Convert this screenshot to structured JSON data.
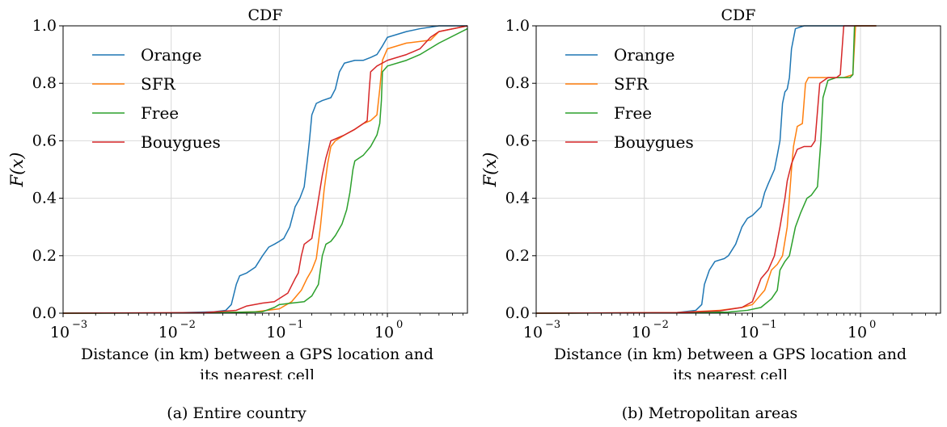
{
  "chart_data": [
    {
      "type": "line",
      "panel": "a",
      "title": "CDF",
      "caption": "(a) Entire country",
      "ylabel": "F(x)",
      "xlabel_lines": [
        "Distance (in km) between a GPS location and",
        "its nearest cell"
      ],
      "xscale": "log",
      "xlim": [
        0.001,
        5.5
      ],
      "ylim": [
        0,
        1
      ],
      "grid": true,
      "legend_position": "upper-left",
      "x_ticks": [
        {
          "value": 0.001,
          "label": "10"
        },
        {
          "value": 0.01,
          "label": "10"
        },
        {
          "value": 0.1,
          "label": "10"
        },
        {
          "value": 1,
          "label": "10"
        }
      ],
      "x_tick_exponents": [
        "−3",
        "−2",
        "−1",
        "0"
      ],
      "y_ticks": [
        {
          "value": 0,
          "label": "0.0"
        },
        {
          "value": 0.2,
          "label": "0.2"
        },
        {
          "value": 0.4,
          "label": "0.4"
        },
        {
          "value": 0.6,
          "label": "0.6"
        },
        {
          "value": 0.8,
          "label": "0.8"
        },
        {
          "value": 1,
          "label": "1.0"
        }
      ],
      "series": [
        {
          "name": "Orange",
          "color": "#1f77b4",
          "points": [
            [
              0.001,
              0
            ],
            [
              0.01,
              0.001
            ],
            [
              0.025,
              0.005
            ],
            [
              0.032,
              0.01
            ],
            [
              0.036,
              0.03
            ],
            [
              0.04,
              0.1
            ],
            [
              0.043,
              0.13
            ],
            [
              0.05,
              0.14
            ],
            [
              0.06,
              0.16
            ],
            [
              0.07,
              0.2
            ],
            [
              0.08,
              0.23
            ],
            [
              0.09,
              0.24
            ],
            [
              0.1,
              0.25
            ],
            [
              0.11,
              0.26
            ],
            [
              0.125,
              0.3
            ],
            [
              0.14,
              0.37
            ],
            [
              0.155,
              0.4
            ],
            [
              0.17,
              0.44
            ],
            [
              0.18,
              0.52
            ],
            [
              0.19,
              0.6
            ],
            [
              0.2,
              0.69
            ],
            [
              0.22,
              0.73
            ],
            [
              0.25,
              0.74
            ],
            [
              0.3,
              0.75
            ],
            [
              0.33,
              0.78
            ],
            [
              0.36,
              0.84
            ],
            [
              0.4,
              0.87
            ],
            [
              0.5,
              0.88
            ],
            [
              0.6,
              0.88
            ],
            [
              0.7,
              0.89
            ],
            [
              0.8,
              0.9
            ],
            [
              0.9,
              0.93
            ],
            [
              1.0,
              0.96
            ],
            [
              1.5,
              0.98
            ],
            [
              2.0,
              0.99
            ],
            [
              3,
              1.0
            ],
            [
              5.5,
              1.0
            ]
          ]
        },
        {
          "name": "SFR",
          "color": "#ff7f0e",
          "points": [
            [
              0.001,
              0
            ],
            [
              0.02,
              0.001
            ],
            [
              0.06,
              0.005
            ],
            [
              0.1,
              0.015
            ],
            [
              0.13,
              0.04
            ],
            [
              0.16,
              0.08
            ],
            [
              0.18,
              0.12
            ],
            [
              0.2,
              0.15
            ],
            [
              0.22,
              0.19
            ],
            [
              0.24,
              0.3
            ],
            [
              0.26,
              0.43
            ],
            [
              0.28,
              0.52
            ],
            [
              0.3,
              0.58
            ],
            [
              0.33,
              0.6
            ],
            [
              0.4,
              0.62
            ],
            [
              0.5,
              0.64
            ],
            [
              0.6,
              0.66
            ],
            [
              0.7,
              0.67
            ],
            [
              0.8,
              0.69
            ],
            [
              0.85,
              0.78
            ],
            [
              0.9,
              0.88
            ],
            [
              1.0,
              0.92
            ],
            [
              1.5,
              0.94
            ],
            [
              2.5,
              0.95
            ],
            [
              3,
              0.98
            ],
            [
              5.5,
              1.0
            ]
          ]
        },
        {
          "name": "Free",
          "color": "#2ca02c",
          "points": [
            [
              0.001,
              0
            ],
            [
              0.02,
              0.001
            ],
            [
              0.07,
              0.005
            ],
            [
              0.09,
              0.02
            ],
            [
              0.1,
              0.03
            ],
            [
              0.13,
              0.035
            ],
            [
              0.17,
              0.04
            ],
            [
              0.2,
              0.06
            ],
            [
              0.23,
              0.1
            ],
            [
              0.25,
              0.2
            ],
            [
              0.27,
              0.24
            ],
            [
              0.3,
              0.25
            ],
            [
              0.33,
              0.27
            ],
            [
              0.38,
              0.31
            ],
            [
              0.42,
              0.36
            ],
            [
              0.45,
              0.42
            ],
            [
              0.48,
              0.5
            ],
            [
              0.5,
              0.53
            ],
            [
              0.6,
              0.55
            ],
            [
              0.7,
              0.58
            ],
            [
              0.8,
              0.62
            ],
            [
              0.85,
              0.66
            ],
            [
              0.88,
              0.74
            ],
            [
              0.9,
              0.84
            ],
            [
              1.0,
              0.86
            ],
            [
              1.5,
              0.88
            ],
            [
              2.0,
              0.9
            ],
            [
              3,
              0.94
            ],
            [
              5.5,
              0.99
            ]
          ]
        },
        {
          "name": "Bouygues",
          "color": "#d62728",
          "points": [
            [
              0.001,
              0
            ],
            [
              0.02,
              0.002
            ],
            [
              0.04,
              0.01
            ],
            [
              0.05,
              0.025
            ],
            [
              0.07,
              0.035
            ],
            [
              0.09,
              0.04
            ],
            [
              0.12,
              0.07
            ],
            [
              0.14,
              0.12
            ],
            [
              0.15,
              0.14
            ],
            [
              0.16,
              0.2
            ],
            [
              0.17,
              0.24
            ],
            [
              0.2,
              0.26
            ],
            [
              0.22,
              0.35
            ],
            [
              0.25,
              0.48
            ],
            [
              0.27,
              0.54
            ],
            [
              0.3,
              0.6
            ],
            [
              0.4,
              0.62
            ],
            [
              0.5,
              0.64
            ],
            [
              0.6,
              0.66
            ],
            [
              0.65,
              0.67
            ],
            [
              0.68,
              0.78
            ],
            [
              0.7,
              0.84
            ],
            [
              0.8,
              0.86
            ],
            [
              1.0,
              0.88
            ],
            [
              1.5,
              0.9
            ],
            [
              2.0,
              0.92
            ],
            [
              2.5,
              0.96
            ],
            [
              3,
              0.98
            ],
            [
              5.5,
              1.0
            ]
          ]
        }
      ]
    },
    {
      "type": "line",
      "panel": "b",
      "title": "CDF",
      "caption": "(b) Metropolitan areas",
      "ylabel": "F(x)",
      "xlabel_lines": [
        "Distance (in km) between a GPS location and",
        "its nearest cell"
      ],
      "xscale": "log",
      "xlim": [
        0.001,
        5.5
      ],
      "ylim": [
        0,
        1
      ],
      "grid": true,
      "legend_position": "upper-left",
      "x_ticks": [
        {
          "value": 0.001,
          "label": "10"
        },
        {
          "value": 0.01,
          "label": "10"
        },
        {
          "value": 0.1,
          "label": "10"
        },
        {
          "value": 1,
          "label": "10"
        }
      ],
      "x_tick_exponents": [
        "−3",
        "−2",
        "−1",
        "0"
      ],
      "y_ticks": [
        {
          "value": 0,
          "label": "0.0"
        },
        {
          "value": 0.2,
          "label": "0.2"
        },
        {
          "value": 0.4,
          "label": "0.4"
        },
        {
          "value": 0.6,
          "label": "0.6"
        },
        {
          "value": 0.8,
          "label": "0.8"
        },
        {
          "value": 1,
          "label": "1.0"
        }
      ],
      "series": [
        {
          "name": "Orange",
          "color": "#1f77b4",
          "points": [
            [
              0.001,
              0
            ],
            [
              0.02,
              0.002
            ],
            [
              0.03,
              0.01
            ],
            [
              0.034,
              0.03
            ],
            [
              0.036,
              0.1
            ],
            [
              0.04,
              0.15
            ],
            [
              0.045,
              0.18
            ],
            [
              0.055,
              0.19
            ],
            [
              0.06,
              0.2
            ],
            [
              0.07,
              0.24
            ],
            [
              0.08,
              0.3
            ],
            [
              0.09,
              0.33
            ],
            [
              0.1,
              0.34
            ],
            [
              0.12,
              0.37
            ],
            [
              0.13,
              0.42
            ],
            [
              0.14,
              0.45
            ],
            [
              0.16,
              0.5
            ],
            [
              0.17,
              0.55
            ],
            [
              0.18,
              0.6
            ],
            [
              0.19,
              0.73
            ],
            [
              0.2,
              0.77
            ],
            [
              0.21,
              0.78
            ],
            [
              0.22,
              0.82
            ],
            [
              0.23,
              0.92
            ],
            [
              0.25,
              0.99
            ],
            [
              0.3,
              1.0
            ],
            [
              0.5,
              1.0
            ],
            [
              1.4,
              1.0
            ]
          ]
        },
        {
          "name": "SFR",
          "color": "#ff7f0e",
          "points": [
            [
              0.001,
              0
            ],
            [
              0.02,
              0.002
            ],
            [
              0.05,
              0.01
            ],
            [
              0.08,
              0.02
            ],
            [
              0.1,
              0.03
            ],
            [
              0.13,
              0.08
            ],
            [
              0.15,
              0.15
            ],
            [
              0.17,
              0.17
            ],
            [
              0.19,
              0.2
            ],
            [
              0.21,
              0.3
            ],
            [
              0.23,
              0.5
            ],
            [
              0.24,
              0.58
            ],
            [
              0.26,
              0.65
            ],
            [
              0.29,
              0.66
            ],
            [
              0.31,
              0.8
            ],
            [
              0.33,
              0.82
            ],
            [
              0.5,
              0.82
            ],
            [
              0.7,
              0.82
            ],
            [
              0.85,
              0.83
            ],
            [
              0.9,
              1.0
            ],
            [
              1.0,
              1.0
            ],
            [
              1.4,
              1.0
            ]
          ]
        },
        {
          "name": "Free",
          "color": "#2ca02c",
          "points": [
            [
              0.001,
              0
            ],
            [
              0.02,
              0.001
            ],
            [
              0.06,
              0.004
            ],
            [
              0.09,
              0.01
            ],
            [
              0.12,
              0.02
            ],
            [
              0.15,
              0.05
            ],
            [
              0.17,
              0.08
            ],
            [
              0.18,
              0.15
            ],
            [
              0.2,
              0.18
            ],
            [
              0.22,
              0.2
            ],
            [
              0.25,
              0.3
            ],
            [
              0.28,
              0.35
            ],
            [
              0.32,
              0.4
            ],
            [
              0.35,
              0.41
            ],
            [
              0.4,
              0.44
            ],
            [
              0.43,
              0.6
            ],
            [
              0.45,
              0.75
            ],
            [
              0.5,
              0.81
            ],
            [
              0.6,
              0.82
            ],
            [
              0.8,
              0.82
            ],
            [
              0.85,
              0.83
            ],
            [
              0.88,
              1.0
            ],
            [
              1.4,
              1.0
            ]
          ]
        },
        {
          "name": "Bouygues",
          "color": "#d62728",
          "points": [
            [
              0.001,
              0
            ],
            [
              0.02,
              0.002
            ],
            [
              0.05,
              0.008
            ],
            [
              0.08,
              0.02
            ],
            [
              0.1,
              0.04
            ],
            [
              0.12,
              0.12
            ],
            [
              0.14,
              0.15
            ],
            [
              0.16,
              0.2
            ],
            [
              0.18,
              0.3
            ],
            [
              0.2,
              0.4
            ],
            [
              0.21,
              0.46
            ],
            [
              0.23,
              0.52
            ],
            [
              0.26,
              0.57
            ],
            [
              0.3,
              0.58
            ],
            [
              0.35,
              0.58
            ],
            [
              0.38,
              0.6
            ],
            [
              0.42,
              0.8
            ],
            [
              0.5,
              0.82
            ],
            [
              0.6,
              0.82
            ],
            [
              0.65,
              0.83
            ],
            [
              0.7,
              1.0
            ],
            [
              1.0,
              1.0
            ],
            [
              1.4,
              1.0
            ]
          ]
        }
      ]
    }
  ]
}
